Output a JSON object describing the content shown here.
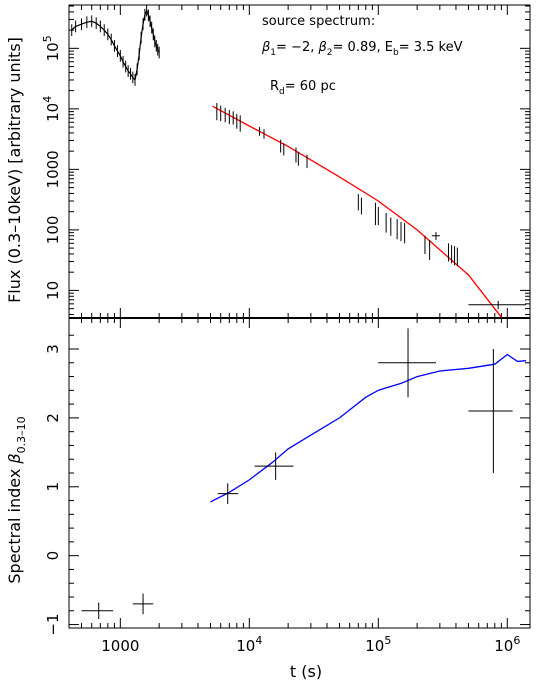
{
  "chart_data": [
    {
      "type": "scatter",
      "panel": "top",
      "title": "",
      "ylabel": "Flux (0.3–10keV) [arbitrary units]",
      "xscale": "log",
      "yscale": "log",
      "xlim": [
        400,
        1500000
      ],
      "ylim": [
        3.5,
        520000
      ],
      "y_ticks": [
        {
          "value": 10,
          "label": "10"
        },
        {
          "value": 100,
          "label": "100"
        },
        {
          "value": 1000,
          "label": "1000"
        },
        {
          "value": 10000,
          "label": "10",
          "exp": "4"
        },
        {
          "value": 100000,
          "label": "10",
          "exp": "5"
        }
      ],
      "annotations": {
        "line1": "source spectrum:",
        "line2_beta1": "= −2,",
        "line2_beta2": "= 0.89, E",
        "line2_eb": "= 3.5 keV",
        "beta_symbol": "β",
        "sub1": "1",
        "sub2": "2",
        "sub_b": "b",
        "line3_r": "R",
        "line3_sub": "d",
        "line3_val": "= 60 pc"
      },
      "colors": {
        "model": "#ff0000",
        "data": "#000000"
      },
      "model_curve": {
        "name": "",
        "x": [
          5200,
          10000,
          20000,
          50000,
          100000,
          200000,
          500000,
          900000
        ],
        "y": [
          11000,
          5200,
          2400,
          750,
          300,
          100,
          18,
          3.6
        ]
      },
      "early_data": {
        "x": [
          420,
          450,
          500,
          550,
          600,
          650,
          700,
          750,
          800,
          850,
          900,
          950,
          1000,
          1050,
          1100,
          1150,
          1200,
          1250,
          1300,
          1350,
          1400,
          1450,
          1500,
          1550,
          1600,
          1650,
          1700,
          1750,
          1800,
          1850,
          1900,
          1950,
          2000
        ],
        "y": [
          200000,
          230000,
          250000,
          270000,
          280000,
          260000,
          230000,
          200000,
          170000,
          140000,
          110000,
          90000,
          75000,
          60000,
          50000,
          42000,
          38000,
          33000,
          30000,
          45000,
          80000,
          150000,
          250000,
          360000,
          420000,
          350000,
          280000,
          220000,
          170000,
          130000,
          110000,
          95000,
          85000
        ]
      },
      "points": [
        {
          "x": 5600,
          "y": 9500,
          "yerr": 3000
        },
        {
          "x": 6000,
          "y": 8800,
          "yerr": 2500
        },
        {
          "x": 6500,
          "y": 8200,
          "yerr": 2200
        },
        {
          "x": 7000,
          "y": 7600,
          "yerr": 2000
        },
        {
          "x": 7500,
          "y": 7300,
          "yerr": 1800
        },
        {
          "x": 8000,
          "y": 6500,
          "yerr": 1800
        },
        {
          "x": 8500,
          "y": 6000,
          "yerr": 1800
        },
        {
          "x": 12000,
          "y": 4300,
          "yerr": 700
        },
        {
          "x": 13000,
          "y": 3900,
          "yerr": 700
        },
        {
          "x": 17500,
          "y": 2500,
          "yerr": 600
        },
        {
          "x": 18500,
          "y": 2200,
          "yerr": 500
        },
        {
          "x": 23000,
          "y": 1800,
          "yerr": 500
        },
        {
          "x": 24000,
          "y": 1550,
          "yerr": 400
        },
        {
          "x": 28000,
          "y": 1400,
          "yerr": 350
        },
        {
          "x": 70000,
          "y": 300,
          "yerr": 90
        },
        {
          "x": 74000,
          "y": 260,
          "yerr": 80
        },
        {
          "x": 95000,
          "y": 200,
          "yerr": 80
        },
        {
          "x": 100000,
          "y": 180,
          "yerr": 60
        },
        {
          "x": 115000,
          "y": 140,
          "yerr": 50
        },
        {
          "x": 125000,
          "y": 120,
          "yerr": 40
        },
        {
          "x": 140000,
          "y": 110,
          "yerr": 40
        },
        {
          "x": 150000,
          "y": 100,
          "yerr": 35
        },
        {
          "x": 160000,
          "y": 95,
          "yerr": 35
        },
        {
          "x": 230000,
          "y": 60,
          "yerr": 20
        },
        {
          "x": 250000,
          "y": 50,
          "yerr": 18
        },
        {
          "x": 280000,
          "y": 80,
          "yerr": 12,
          "xerr": [
            260000,
            300000
          ]
        },
        {
          "x": 350000,
          "y": 45,
          "yerr": 15
        },
        {
          "x": 370000,
          "y": 42,
          "yerr": 14
        },
        {
          "x": 390000,
          "y": 40,
          "yerr": 14
        },
        {
          "x": 410000,
          "y": 38,
          "yerr": 13
        },
        {
          "x": 850000,
          "y": 5.8,
          "yerr": 0.9,
          "xerr": [
            500000,
            1400000
          ]
        }
      ]
    },
    {
      "type": "line",
      "panel": "bottom",
      "title": "",
      "xlabel": "t (s)",
      "ylabel_main": "Spectral index ",
      "ylabel_symbol": "β",
      "ylabel_sub": "0.3–10",
      "xscale": "log",
      "xlim": [
        400,
        1500000
      ],
      "ylim": [
        -1.05,
        3.45
      ],
      "x_ticks": [
        {
          "value": 1000,
          "label": "1000"
        },
        {
          "value": 10000,
          "label": "10",
          "exp": "4"
        },
        {
          "value": 100000,
          "label": "10",
          "exp": "5"
        },
        {
          "value": 1000000,
          "label": "10",
          "exp": "6"
        }
      ],
      "y_ticks": [
        {
          "value": -1,
          "label": "−1"
        },
        {
          "value": 0,
          "label": "0"
        },
        {
          "value": 1,
          "label": "1"
        },
        {
          "value": 2,
          "label": "2"
        },
        {
          "value": 3,
          "label": "3"
        }
      ],
      "colors": {
        "model": "#0000ff",
        "data": "#000000"
      },
      "model_curve": {
        "name": "",
        "x": [
          5000,
          7000,
          10000,
          15000,
          20000,
          30000,
          50000,
          80000,
          100000,
          150000,
          200000,
          300000,
          500000,
          800000,
          1000000,
          1200000,
          1400000
        ],
        "y": [
          0.78,
          0.92,
          1.1,
          1.35,
          1.55,
          1.75,
          2.0,
          2.3,
          2.4,
          2.5,
          2.6,
          2.68,
          2.72,
          2.78,
          2.92,
          2.82,
          2.83
        ]
      },
      "points": [
        {
          "x": 680,
          "y": -0.8,
          "xerr": [
            500,
            880
          ],
          "yerr": 0.12
        },
        {
          "x": 1500,
          "y": -0.7,
          "xerr": [
            1250,
            1800
          ],
          "yerr": 0.15
        },
        {
          "x": 6800,
          "y": 0.9,
          "xerr": [
            5700,
            8200
          ],
          "yerr": 0.15
        },
        {
          "x": 16000,
          "y": 1.3,
          "xerr": [
            11000,
            22000
          ],
          "yerr": 0.2
        },
        {
          "x": 170000,
          "y": 2.8,
          "xerr": [
            100000,
            280000
          ],
          "yerr": 0.5
        },
        {
          "x": 780000,
          "y": 2.1,
          "xerr": [
            500000,
            1100000
          ],
          "yerr": 0.9
        }
      ]
    }
  ]
}
